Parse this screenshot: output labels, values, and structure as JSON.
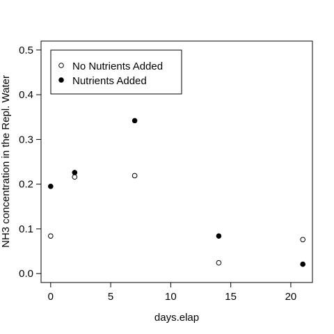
{
  "chart_data": {
    "type": "scatter",
    "xlabel": "days.elap",
    "ylabel": "NH3 concentration in the Repl. Water",
    "xlim": [
      -0.8,
      21.8
    ],
    "ylim": [
      -0.02,
      0.52
    ],
    "x_ticks": [
      0,
      5,
      10,
      15,
      20
    ],
    "y_ticks": [
      0.0,
      0.1,
      0.2,
      0.3,
      0.4,
      0.5
    ],
    "x_tick_labels": [
      "0",
      "5",
      "10",
      "15",
      "20"
    ],
    "y_tick_labels": [
      "0.0",
      "0.1",
      "0.2",
      "0.3",
      "0.4",
      "0.5"
    ],
    "legend_position": "top-left",
    "series": [
      {
        "name": "No Nutrients Added",
        "marker": "open-circle",
        "color": "#000000",
        "x": [
          0,
          2,
          7,
          14,
          21
        ],
        "y": [
          0.084,
          0.216,
          0.219,
          0.024,
          0.076
        ]
      },
      {
        "name": "Nutrients Added",
        "marker": "filled-circle",
        "color": "#000000",
        "x": [
          0,
          2,
          7,
          14,
          21
        ],
        "y": [
          0.195,
          0.226,
          0.342,
          0.084,
          0.021
        ]
      }
    ]
  }
}
